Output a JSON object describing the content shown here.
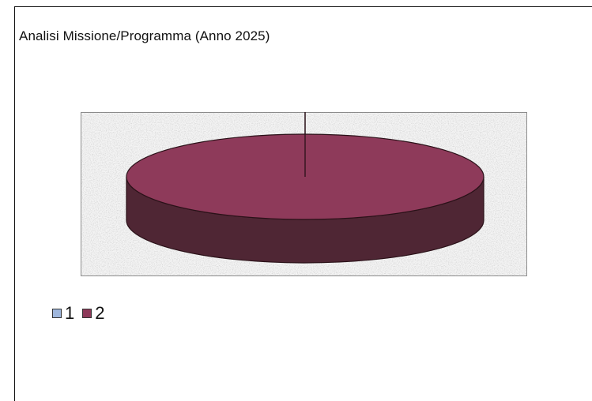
{
  "chart_data": {
    "type": "pie",
    "title": "Analisi Missione/Programma (Anno 2025)",
    "categories": [
      "1",
      "2"
    ],
    "values": [
      0,
      100
    ],
    "colors": [
      "#9fb7dd",
      "#8e3a5a"
    ],
    "side_color": "#4f2634",
    "legend_position": "bottom-left",
    "grid": false,
    "three_d": true
  }
}
